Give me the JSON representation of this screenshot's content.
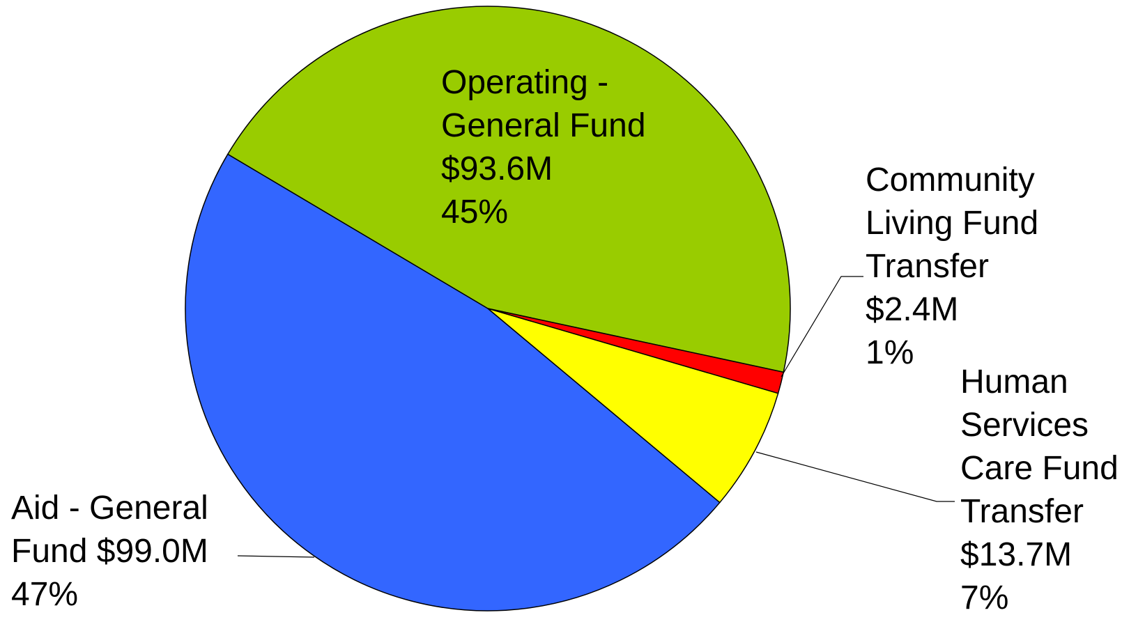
{
  "chart_data": {
    "type": "pie",
    "categories": [
      "Operating - General Fund",
      "Community Living Fund Transfer",
      "Human Services Care Fund Transfer",
      "Aid - General Fund"
    ],
    "values": [
      93600000,
      2400000,
      13700000,
      99000000
    ],
    "value_labels": [
      "$93.6M",
      "$2.4M",
      "$13.7M",
      "$99.0M"
    ],
    "percents": [
      45,
      1,
      7,
      47
    ],
    "percent_labels": [
      "45%",
      "1%",
      "7%",
      "47%"
    ],
    "colors": [
      "#99cc00",
      "#ff0000",
      "#ffff00",
      "#3366ff"
    ]
  }
}
